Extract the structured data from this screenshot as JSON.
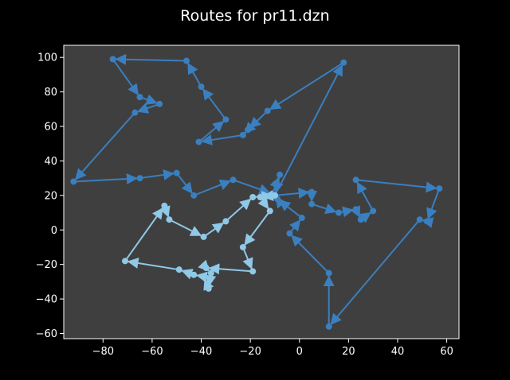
{
  "chart_data": {
    "type": "line",
    "title": "Routes for pr11.dzn",
    "xlabel": "",
    "ylabel": "",
    "xlim": [
      -96,
      65
    ],
    "ylim": [
      -63,
      107
    ],
    "xticks": [
      -80,
      -60,
      -40,
      -20,
      0,
      20,
      40,
      60
    ],
    "yticks": [
      -60,
      -40,
      -20,
      0,
      20,
      40,
      60,
      80,
      100
    ],
    "grid": false,
    "legend": "none",
    "background": "#3f3f3f",
    "series": [
      {
        "color": "#3a7fbf",
        "points": [
          [
            -10,
            20
          ],
          [
            18,
            97
          ],
          [
            -13,
            69
          ],
          [
            -21,
            58
          ],
          [
            -23,
            55
          ],
          [
            -41,
            51
          ],
          [
            -30,
            64
          ],
          [
            -40,
            83
          ],
          [
            -46,
            98
          ],
          [
            -76,
            99
          ],
          [
            -65,
            77
          ],
          [
            -57,
            73
          ],
          [
            -67,
            68
          ],
          [
            -92,
            28
          ],
          [
            -65,
            30
          ],
          [
            -50,
            33
          ],
          [
            -43,
            20
          ],
          [
            -27,
            29
          ],
          [
            -11,
            21
          ],
          [
            -8,
            32
          ],
          [
            -10,
            20
          ],
          [
            5,
            22
          ],
          [
            5,
            15
          ],
          [
            16,
            10
          ],
          [
            23,
            12
          ],
          [
            25,
            6
          ],
          [
            30,
            11
          ],
          [
            23,
            29
          ],
          [
            57,
            24
          ],
          [
            52,
            5
          ],
          [
            49,
            6
          ],
          [
            12,
            -56
          ],
          [
            12,
            -25
          ],
          [
            -4,
            -2
          ],
          [
            1,
            7
          ],
          [
            -9,
            18
          ],
          [
            -10,
            20
          ]
        ]
      },
      {
        "color": "#90c8e8",
        "points": [
          [
            -10,
            20
          ],
          [
            -16,
            19
          ],
          [
            -12,
            11
          ],
          [
            -23,
            -10
          ],
          [
            -19,
            -24
          ],
          [
            -38,
            -22
          ],
          [
            -36,
            -25
          ],
          [
            -37,
            -34
          ],
          [
            -39,
            -27
          ],
          [
            -43,
            -26
          ],
          [
            -49,
            -23
          ],
          [
            -71,
            -18
          ],
          [
            -55,
            14
          ],
          [
            -53,
            6
          ],
          [
            -39,
            -4
          ],
          [
            -30,
            5
          ],
          [
            -19,
            19
          ],
          [
            -10,
            20
          ]
        ]
      }
    ]
  }
}
